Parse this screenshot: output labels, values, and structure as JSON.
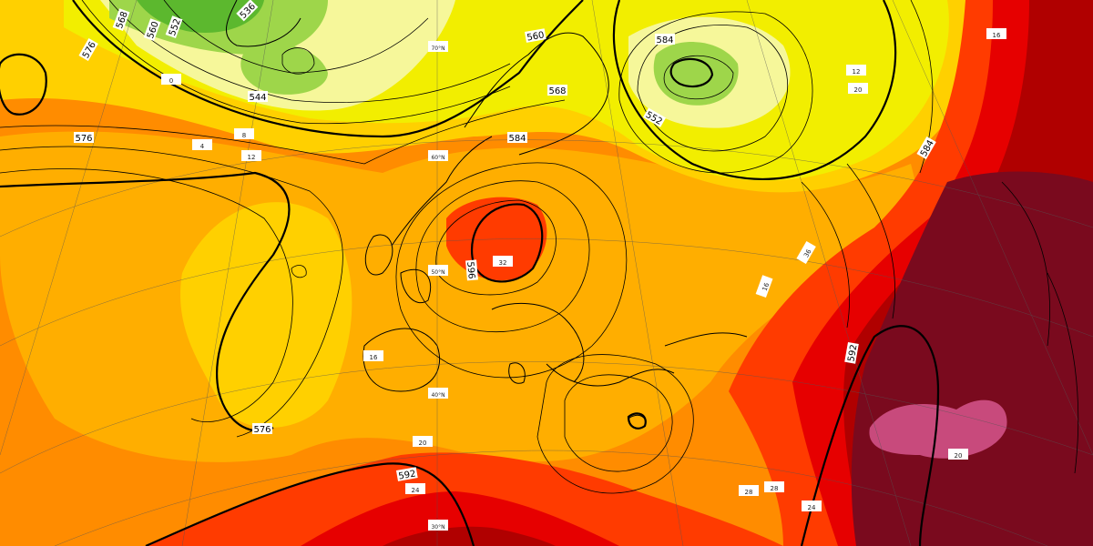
{
  "map": {
    "colors": {
      "green_dark": "#5cb82e",
      "green_light": "#9ed64a",
      "yellow_pale": "#f6f79a",
      "yellow": "#f2ee00",
      "gold": "#ffd000",
      "orange_light": "#ffae00",
      "orange": "#ff8c00",
      "orange_dark": "#ff6a00",
      "red_orange": "#ff3b00",
      "red": "#e60000",
      "dark_red": "#b00000",
      "maroon": "#7a0a1e",
      "pink": "#c84a7c"
    },
    "contour_labels": [
      "568",
      "560",
      "552",
      "536",
      "576",
      "544",
      "584",
      "552",
      "560",
      "568",
      "576",
      "584",
      "596",
      "576",
      "592",
      "592",
      "584"
    ],
    "temp_labels": [
      "0",
      "4",
      "8",
      "12",
      "16",
      "16",
      "20",
      "24",
      "28",
      "32",
      "36",
      "28",
      "24",
      "20",
      "12",
      "16",
      "20"
    ],
    "grid_labels": [
      "70°N",
      "60°N",
      "50°N",
      "40°N",
      "30°N"
    ]
  }
}
